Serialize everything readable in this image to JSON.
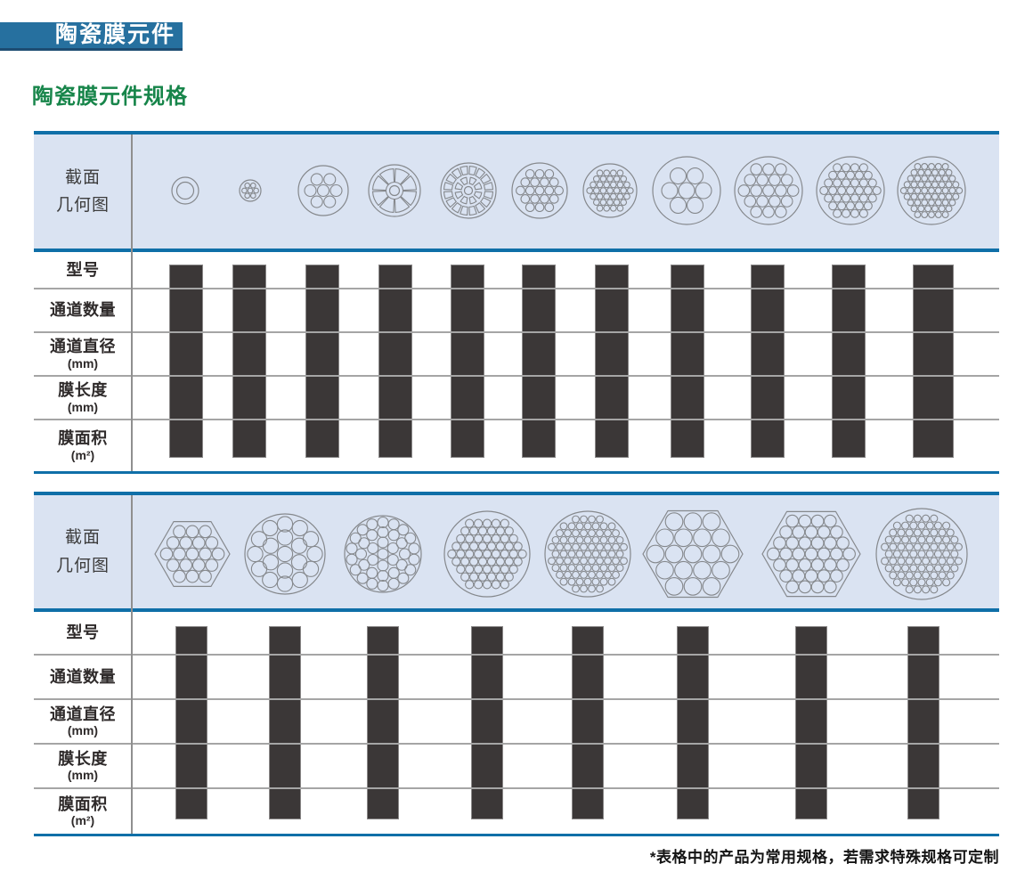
{
  "page": {
    "title": "陶瓷膜元件",
    "subtitle": "陶瓷膜元件规格",
    "footnote": "*表格中的产品为常用规格，若需求特殊规格可定制"
  },
  "colors": {
    "title_bar_bg": "#26709f",
    "title_bar_edge": "#1d4c72",
    "subtitle_green": "#17854a",
    "table_border_blue": "#0f6fa8",
    "header_band_bg": "#dae3f2",
    "redaction_bar": "#3b3737",
    "diagram_stroke": "#85888c",
    "grid_line": "#a5a5a5",
    "divider_line": "#8f8f8f"
  },
  "tables": [
    {
      "name": "round-elements",
      "header_label_lines": [
        "截面",
        "几何图"
      ],
      "row_labels": [
        {
          "key": "model",
          "label": "型号",
          "unit": ""
        },
        {
          "key": "channel-count",
          "label": "通道数量",
          "unit": ""
        },
        {
          "key": "channel-diameter",
          "label": "通道直径",
          "unit": "(mm)"
        },
        {
          "key": "membrane-length",
          "label": "膜长度",
          "unit": "(mm)"
        },
        {
          "key": "membrane-area",
          "label": "膜面积",
          "unit": "(m²)"
        }
      ],
      "values_redacted": true,
      "columns": [
        {
          "diagram": "cross-section-single-channel",
          "outer": "circle",
          "R": 15,
          "innerR": 9.5
        },
        {
          "diagram": "cross-section-7-channel-small",
          "outer": "circle",
          "R": 12,
          "pack": {
            "r": 2.8,
            "pitch": 6.6
          }
        },
        {
          "diagram": "cross-section-7-channel",
          "outer": "circle",
          "R": 28,
          "pack": {
            "r": 6.5,
            "pitch": 14.5
          }
        },
        {
          "diagram": "cross-section-8-segment-lotus",
          "outer": "circle",
          "R": 29,
          "special": "petals8"
        },
        {
          "diagram": "cross-section-radial-segments",
          "outer": "circle",
          "R": 31,
          "special": "radial16"
        },
        {
          "diagram": "cross-section-19-channel",
          "outer": "circle",
          "R": 31,
          "pack": {
            "r": 4.8,
            "pitch": 10.8
          }
        },
        {
          "diagram": "cross-section-37-channel",
          "outer": "circle",
          "R": 30,
          "pack": {
            "r": 3.3,
            "pitch": 7.6
          }
        },
        {
          "diagram": "cross-section-7-channel-large",
          "outer": "circle",
          "R": 38,
          "pack": {
            "r": 9,
            "pitch": 19
          }
        },
        {
          "diagram": "cross-section-19-channel-large",
          "outer": "circle",
          "R": 38,
          "pack": {
            "r": 6.3,
            "pitch": 13.8
          }
        },
        {
          "diagram": "cross-section-37-channel-large",
          "outer": "circle",
          "R": 38,
          "pack": {
            "r": 4.5,
            "pitch": 9.9
          }
        },
        {
          "diagram": "cross-section-61-channel-large",
          "outer": "circle",
          "R": 38,
          "pack": {
            "r": 3.4,
            "pitch": 7.8
          }
        }
      ]
    },
    {
      "name": "large-elements",
      "header_label_lines": [
        "截面",
        "几何图"
      ],
      "row_labels": [
        {
          "key": "model",
          "label": "型号",
          "unit": ""
        },
        {
          "key": "channel-count",
          "label": "通道数量",
          "unit": ""
        },
        {
          "key": "channel-diameter",
          "label": "通道直径",
          "unit": "(mm)"
        },
        {
          "key": "membrane-length",
          "label": "膜长度",
          "unit": "(mm)"
        },
        {
          "key": "membrane-area",
          "label": "膜面积",
          "unit": "(m²)"
        }
      ],
      "values_redacted": true,
      "columns": [
        {
          "diagram": "cross-section-hex-19-channel",
          "outer": "hexagon",
          "R": 42,
          "pack": {
            "r": 6.8,
            "pitch": 14.5
          }
        },
        {
          "diagram": "cross-section-19-channel-round",
          "outer": "circle",
          "R": 45,
          "chR": 8.6,
          "rings": [
            {
              "n": 1,
              "rad": 0
            },
            {
              "n": 6,
              "rad": 18.5
            },
            {
              "n": 12,
              "rad": 33.5
            }
          ]
        },
        {
          "diagram": "cross-section-37-channel-round",
          "outer": "circle",
          "R": 43,
          "chR": 6,
          "rings": [
            {
              "n": 1,
              "rad": 0
            },
            {
              "n": 6,
              "rad": 13
            },
            {
              "n": 12,
              "rad": 24.5
            },
            {
              "n": 18,
              "rad": 35.5
            }
          ]
        },
        {
          "diagram": "cross-section-61-channel-round",
          "outer": "circle",
          "R": 48,
          "pack": {
            "r": 4.6,
            "pitch": 9.9
          }
        },
        {
          "diagram": "cross-section-85-channel-round",
          "outer": "circle",
          "R": 48,
          "pack": {
            "r": 3.9,
            "pitch": 9.0
          }
        },
        {
          "diagram": "cross-section-hex-19-channel-large",
          "outer": "hexagon",
          "R": 56,
          "pack": {
            "r": 9.8,
            "pitch": 21
          }
        },
        {
          "diagram": "cross-section-hex-37-channel",
          "outer": "hexagon",
          "R": 55,
          "pack": {
            "r": 6.8,
            "pitch": 14.2
          }
        },
        {
          "diagram": "cross-section-91-channel-round",
          "outer": "circle",
          "R": 51,
          "pack": {
            "r": 4.0,
            "pitch": 9.2
          }
        }
      ]
    }
  ]
}
